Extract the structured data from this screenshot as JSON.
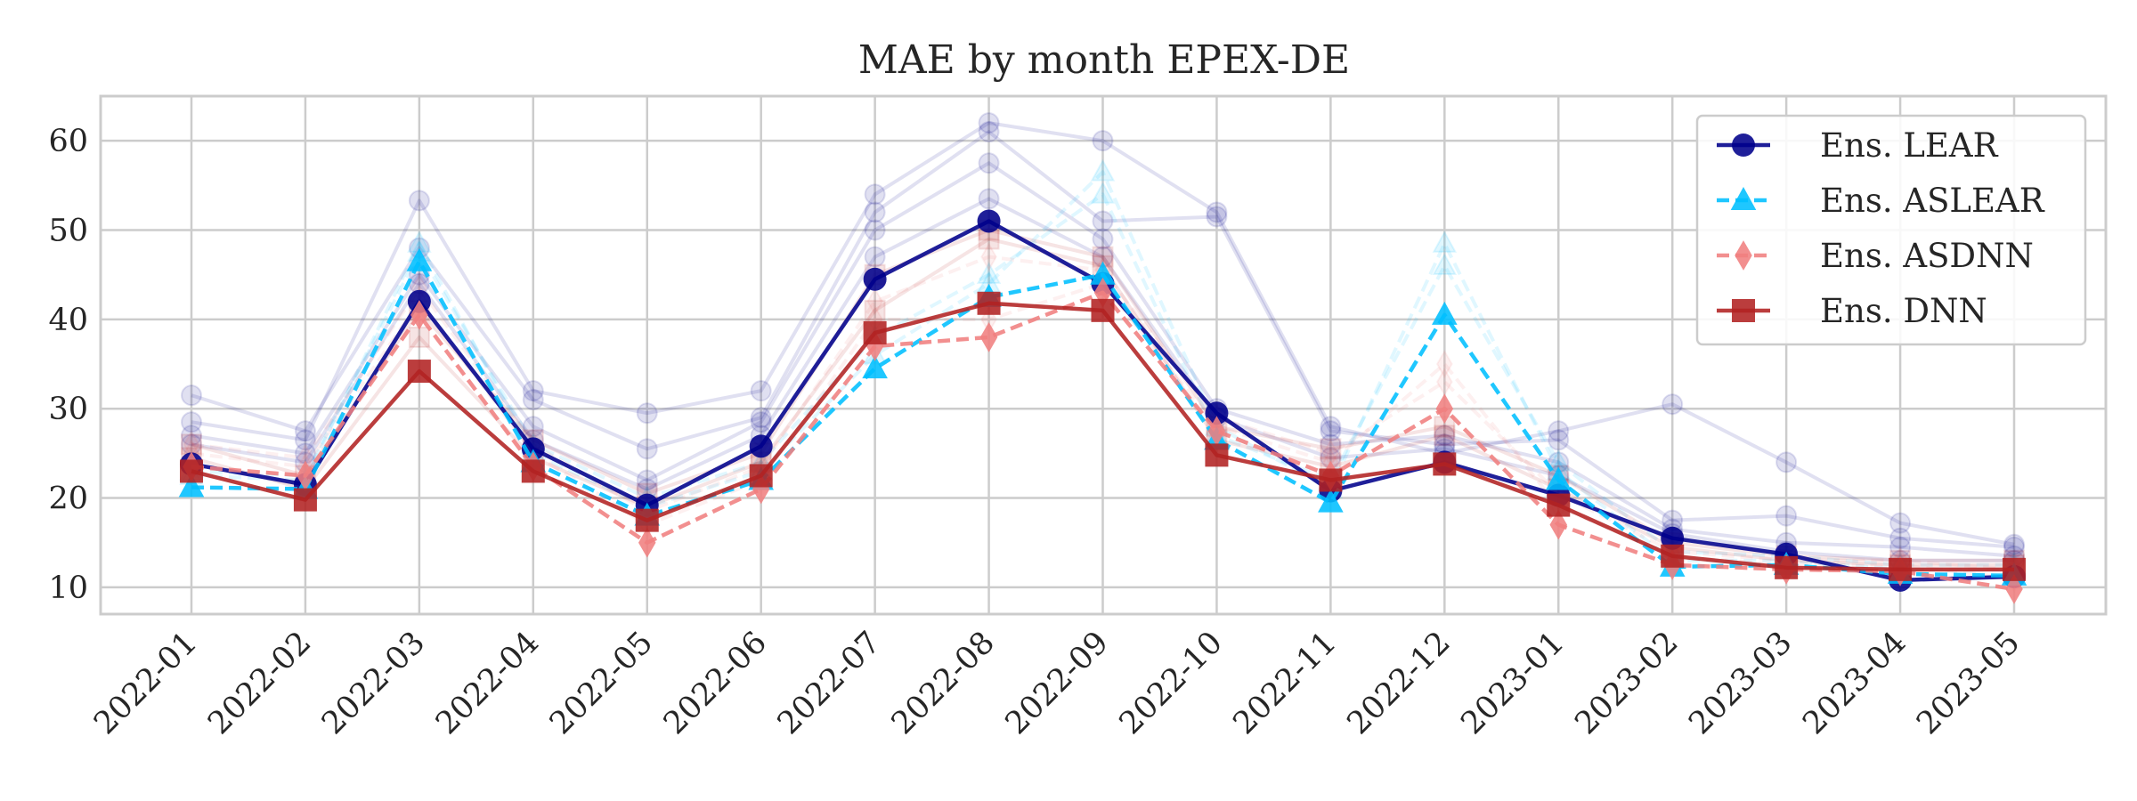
{
  "chart_data": {
    "type": "line",
    "title": "MAE by month EPEX-DE",
    "xlabel": "",
    "ylabel": "",
    "ylim": [
      7,
      65
    ],
    "yticks": [
      10,
      20,
      30,
      40,
      50,
      60
    ],
    "grid": true,
    "legend_position": "top-right",
    "categories": [
      "2022-01",
      "2022-02",
      "2022-03",
      "2022-04",
      "2022-05",
      "2022-06",
      "2022-07",
      "2022-08",
      "2022-09",
      "2022-10",
      "2022-11",
      "2022-12",
      "2023-01",
      "2023-02",
      "2023-03",
      "2023-04",
      "2023-05"
    ],
    "series": [
      {
        "name": "Ens. LEAR",
        "color": "#00008b",
        "marker": "circle",
        "dash": "solid",
        "values": [
          23.8,
          21.5,
          42.0,
          25.5,
          19.2,
          25.8,
          44.5,
          51.0,
          44.0,
          29.5,
          20.8,
          24.0,
          20.3,
          15.5,
          13.7,
          10.8,
          11.2
        ]
      },
      {
        "name": "Ens. ASLEAR",
        "color": "#00bfff",
        "marker": "triangle",
        "dash": "dashed",
        "values": [
          21.2,
          21.0,
          46.5,
          24.0,
          18.0,
          22.0,
          34.5,
          42.5,
          45.0,
          26.5,
          19.5,
          40.5,
          22.0,
          12.3,
          12.5,
          11.5,
          11.3
        ]
      },
      {
        "name": "Ens. ASDNN",
        "color": "#f08080",
        "marker": "diamond",
        "dash": "dashed",
        "values": [
          23.5,
          22.5,
          40.5,
          23.5,
          15.0,
          21.0,
          37.0,
          38.0,
          43.0,
          27.5,
          22.5,
          30.0,
          17.0,
          12.5,
          12.0,
          11.8,
          9.8
        ]
      },
      {
        "name": "Ens. DNN",
        "color": "#b22222",
        "marker": "square",
        "dash": "solid",
        "values": [
          23.0,
          19.8,
          34.2,
          23.0,
          17.5,
          22.5,
          38.5,
          41.8,
          41.0,
          24.8,
          22.0,
          23.8,
          19.2,
          13.5,
          12.2,
          12.0,
          12.0
        ]
      }
    ],
    "background_series": [
      {
        "color": "#00008b",
        "marker": "circle",
        "dash": "solid",
        "values": [
          28.5,
          26.5,
          53.3,
          32.0,
          29.5,
          32.0,
          54.0,
          62.0,
          60.0,
          52.0,
          28.0,
          25.0,
          27.5,
          30.5,
          24.0,
          17.2,
          14.8
        ]
      },
      {
        "color": "#00008b",
        "marker": "circle",
        "dash": "solid",
        "values": [
          31.5,
          27.5,
          48.0,
          31.0,
          25.5,
          29.0,
          52.0,
          61.0,
          51.0,
          51.5,
          27.5,
          26.0,
          26.5,
          17.5,
          18.0,
          15.5,
          14.5
        ]
      },
      {
        "color": "#00008b",
        "marker": "circle",
        "dash": "solid",
        "values": [
          27.0,
          25.0,
          45.0,
          28.0,
          22.0,
          28.5,
          50.0,
          57.5,
          49.0,
          30.0,
          26.0,
          27.0,
          24.0,
          16.5,
          15.0,
          14.5,
          13.5
        ]
      },
      {
        "color": "#00008b",
        "marker": "circle",
        "dash": "solid",
        "values": [
          26.0,
          24.0,
          44.0,
          26.5,
          21.0,
          27.0,
          47.0,
          53.5,
          47.0,
          29.0,
          24.5,
          25.5,
          22.5,
          16.0,
          14.0,
          13.0,
          13.0
        ]
      },
      {
        "color": "#00bfff",
        "marker": "triangle",
        "dash": "dashed",
        "values": [
          22.5,
          22.0,
          48.5,
          25.0,
          19.0,
          23.0,
          36.0,
          44.0,
          56.5,
          28.0,
          21.0,
          48.5,
          23.0,
          13.0,
          13.0,
          12.0,
          12.0
        ]
      },
      {
        "color": "#00bfff",
        "marker": "triangle",
        "dash": "dashed",
        "values": [
          23.0,
          22.5,
          47.5,
          26.0,
          20.0,
          24.0,
          38.0,
          45.0,
          54.0,
          27.0,
          22.0,
          46.0,
          24.0,
          14.0,
          13.5,
          12.5,
          12.5
        ]
      },
      {
        "color": "#f08080",
        "marker": "diamond",
        "dash": "dashed",
        "values": [
          25.0,
          23.5,
          42.0,
          25.0,
          17.0,
          22.0,
          40.0,
          40.0,
          44.0,
          28.0,
          24.0,
          35.0,
          19.0,
          13.5,
          12.5,
          12.5,
          11.0
        ]
      },
      {
        "color": "#f08080",
        "marker": "diamond",
        "dash": "dashed",
        "values": [
          26.0,
          24.5,
          43.5,
          26.0,
          18.5,
          23.5,
          42.0,
          47.0,
          45.5,
          29.0,
          25.0,
          33.0,
          20.5,
          14.0,
          13.0,
          13.0,
          12.0
        ]
      },
      {
        "color": "#b22222",
        "marker": "square",
        "dash": "solid",
        "values": [
          24.5,
          21.0,
          38.0,
          24.5,
          19.0,
          24.0,
          41.0,
          49.0,
          46.0,
          26.5,
          23.5,
          27.0,
          21.0,
          14.5,
          13.0,
          12.5,
          12.5
        ]
      },
      {
        "color": "#b22222",
        "marker": "square",
        "dash": "solid",
        "values": [
          26.0,
          22.5,
          41.0,
          26.5,
          20.5,
          25.0,
          45.0,
          50.0,
          47.0,
          28.0,
          25.5,
          28.0,
          22.5,
          15.0,
          13.5,
          13.0,
          13.0
        ]
      }
    ]
  }
}
